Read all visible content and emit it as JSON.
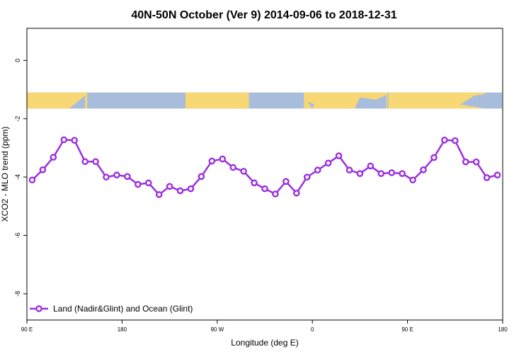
{
  "chart_data": {
    "type": "line",
    "title": "40N-50N October (Ver 9)   2014-09-06 to 2018-12-31",
    "xlabel": "Longitude (deg E)",
    "ylabel": "XCO2 - MLO trend (ppm)",
    "x_ticks": [
      {
        "value": 90,
        "label": "90 E"
      },
      {
        "value": 180,
        "label": "180"
      },
      {
        "value": 270,
        "label": "90 W"
      },
      {
        "value": 360,
        "label": "0"
      },
      {
        "value": 450,
        "label": "90 E"
      },
      {
        "value": 540,
        "label": "180"
      }
    ],
    "y_ticks": [
      0,
      -2,
      -4,
      -6,
      -8
    ],
    "xlim": [
      90,
      540
    ],
    "ylim": [
      -8.9,
      1.1
    ],
    "grid": false,
    "legend_position": "bottom-left",
    "series": [
      {
        "name": "Land (Nadir&Glint) and Ocean (Glint)",
        "color": "#9b30e0",
        "x": [
          95,
          105,
          115,
          125,
          135,
          145,
          155,
          165,
          175,
          185,
          195,
          205,
          215,
          225,
          235,
          245,
          255,
          265,
          275,
          285,
          295,
          305,
          315,
          325,
          335,
          345,
          355,
          365,
          375,
          385,
          395,
          405,
          415,
          425,
          435,
          445,
          455,
          465,
          475,
          485,
          495,
          505,
          515,
          525,
          535
        ],
        "values": [
          -4.1,
          -3.75,
          -3.32,
          -2.72,
          -2.74,
          -3.47,
          -3.47,
          -4.0,
          -3.93,
          -3.98,
          -4.25,
          -4.2,
          -4.6,
          -4.32,
          -4.47,
          -4.4,
          -3.98,
          -3.45,
          -3.38,
          -3.67,
          -3.8,
          -4.2,
          -4.4,
          -4.58,
          -4.15,
          -4.55,
          -4.0,
          -3.76,
          -3.52,
          -3.27,
          -3.76,
          -3.88,
          -3.62,
          -3.88,
          -3.85,
          -3.88,
          -4.1,
          -3.75,
          -3.33,
          -2.73,
          -2.75,
          -3.48,
          -3.48,
          -4.02,
          -3.93
        ]
      }
    ],
    "map_strip": {
      "y_range": [
        -1.1,
        -1.65
      ],
      "ocean_color": "#a8bcdc",
      "land_color": "#f7d874"
    }
  }
}
